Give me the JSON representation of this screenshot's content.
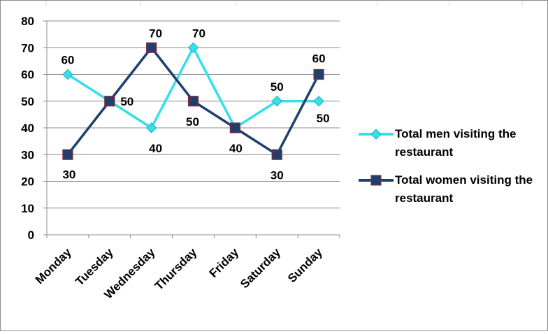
{
  "chart_data": {
    "type": "line",
    "title": "",
    "xlabel": "",
    "ylabel": "",
    "categories": [
      "Monday",
      "Tuesday",
      "Wednesday",
      "Thursday",
      "Friday",
      "Saturday",
      "Sunday"
    ],
    "ylim": [
      0,
      80
    ],
    "yticks": [
      "0",
      "10",
      "20",
      "30",
      "40",
      "50",
      "60",
      "70",
      "80"
    ],
    "grid": "horizontal",
    "legend_position": "right",
    "series": [
      {
        "name": "Total men visiting the restaurant",
        "values": [
          60,
          50,
          40,
          70,
          40,
          50,
          50
        ],
        "color": "#33e0e8",
        "marker": "diamond",
        "labels": [
          "60",
          "",
          "40",
          "70",
          "",
          "50",
          "50"
        ]
      },
      {
        "name": "Total women visiting the restaurant",
        "values": [
          30,
          50,
          70,
          50,
          40,
          30,
          60
        ],
        "color": "#1f3f6f",
        "marker": "square",
        "marker_edge": "#8b2a3a",
        "labels": [
          "30",
          "50",
          "70",
          "50",
          "40",
          "30",
          "60"
        ]
      }
    ]
  },
  "legend": {
    "items": [
      "Total men visiting the restaurant",
      "Total women visiting the restaurant"
    ]
  }
}
